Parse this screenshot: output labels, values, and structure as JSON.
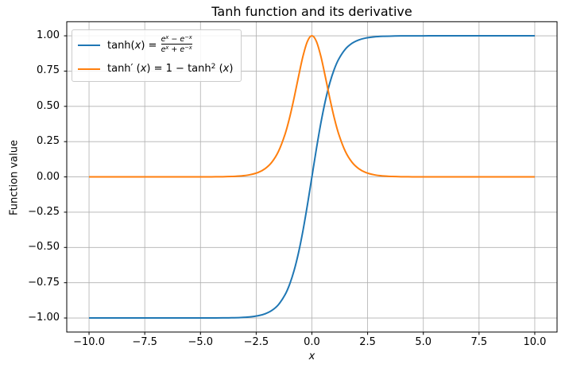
{
  "figure": {
    "background": "#ffffff",
    "axis_color": "#000000"
  },
  "chart_data": {
    "type": "line",
    "title": "Tanh function and its derivative",
    "xlabel": "x",
    "ylabel": "Function value",
    "xlim": [
      -11,
      11
    ],
    "ylim": [
      -1.1,
      1.1
    ],
    "grid": true,
    "grid_color": "#b0b0b0",
    "legend_position": "upper left",
    "xticks": [
      -10,
      -7.5,
      -5,
      -2.5,
      0,
      2.5,
      5,
      7.5,
      10
    ],
    "xtick_labels": [
      "−10.0",
      "−7.5",
      "−5.0",
      "−2.5",
      "0.0",
      "2.5",
      "5.0",
      "7.5",
      "10.0"
    ],
    "yticks": [
      -1,
      -0.75,
      -0.5,
      -0.25,
      0,
      0.25,
      0.5,
      0.75,
      1
    ],
    "ytick_labels": [
      "−1.00",
      "−0.75",
      "−0.50",
      "−0.25",
      "0.00",
      "0.25",
      "0.50",
      "0.75",
      "1.00"
    ],
    "series": [
      {
        "id": "tanh",
        "name": "tanh(x) = (e^x − e^−x)/(e^x + e^−x)",
        "color": "#1f77b4",
        "x": [
          -10,
          -9,
          -8,
          -7,
          -6,
          -5.5,
          -5,
          -4.5,
          -4,
          -3.6,
          -3.2,
          -2.8,
          -2.4,
          -2.1,
          -1.8,
          -1.5,
          -1.2,
          -1,
          -0.8,
          -0.6,
          -0.4,
          -0.2,
          0,
          0.2,
          0.4,
          0.6,
          0.8,
          1,
          1.2,
          1.5,
          1.8,
          2.1,
          2.4,
          2.8,
          3.2,
          3.6,
          4,
          4.5,
          5,
          5.5,
          6,
          7,
          8,
          9,
          10
        ],
        "y": [
          -1,
          -1,
          -1,
          -1,
          -1,
          -1,
          -0.9999,
          -0.9998,
          -0.9993,
          -0.9985,
          -0.9967,
          -0.9926,
          -0.9837,
          -0.9705,
          -0.9468,
          -0.9051,
          -0.8337,
          -0.7616,
          -0.664,
          -0.537,
          -0.38,
          -0.1974,
          0,
          0.1974,
          0.38,
          0.537,
          0.664,
          0.7616,
          0.8337,
          0.9051,
          0.9468,
          0.9705,
          0.9837,
          0.9926,
          0.9967,
          0.9985,
          0.9993,
          0.9998,
          0.9999,
          1,
          1,
          1,
          1,
          1,
          1
        ]
      },
      {
        "id": "tanh-derivative",
        "name": "tanh′(x) = 1 − tanh²(x)",
        "color": "#ff7f0e",
        "x": [
          -10,
          -9,
          -8,
          -7,
          -6,
          -5.5,
          -5,
          -4.5,
          -4,
          -3.6,
          -3.2,
          -2.8,
          -2.4,
          -2.1,
          -1.8,
          -1.5,
          -1.2,
          -1,
          -0.8,
          -0.6,
          -0.4,
          -0.2,
          0,
          0.2,
          0.4,
          0.6,
          0.8,
          1,
          1.2,
          1.5,
          1.8,
          2.1,
          2.4,
          2.8,
          3.2,
          3.6,
          4,
          4.5,
          5,
          5.5,
          6,
          7,
          8,
          9,
          10
        ],
        "y": [
          0,
          0,
          0,
          0,
          0,
          0.0001,
          0.0002,
          0.0005,
          0.0013,
          0.003,
          0.0066,
          0.0147,
          0.0324,
          0.0582,
          0.1036,
          0.1807,
          0.305,
          0.42,
          0.5591,
          0.7116,
          0.8556,
          0.961,
          1,
          0.961,
          0.8556,
          0.7116,
          0.5591,
          0.42,
          0.305,
          0.1807,
          0.1036,
          0.0582,
          0.0324,
          0.0147,
          0.0066,
          0.003,
          0.0013,
          0.0005,
          0.0002,
          0.0001,
          0,
          0,
          0,
          0,
          0
        ]
      }
    ]
  },
  "legend": {
    "entries": [
      {
        "name": "tanh",
        "color": "#1f77b4",
        "lhs_func": "tanh(",
        "lhs_var": "x",
        "lhs_end": ") = ",
        "num": {
          "e1": "e",
          "exp1": "x",
          "minus": " − ",
          "e2": "e",
          "exp2": "−x"
        },
        "den": {
          "e1": "e",
          "exp1": "x",
          "plus": " + ",
          "e2": "e",
          "exp2": "−x"
        }
      },
      {
        "name": "tanh-derivative",
        "color": "#ff7f0e",
        "lhs_func": "tanh",
        "prime": "′",
        "lhs_open": " (",
        "lhs_var": "x",
        "lhs_end": ") = ",
        "rhs_a": "1 − tanh",
        "rhs_sup": "2",
        "rhs_open": " (",
        "rhs_var": "x",
        "rhs_close": ")"
      }
    ]
  }
}
